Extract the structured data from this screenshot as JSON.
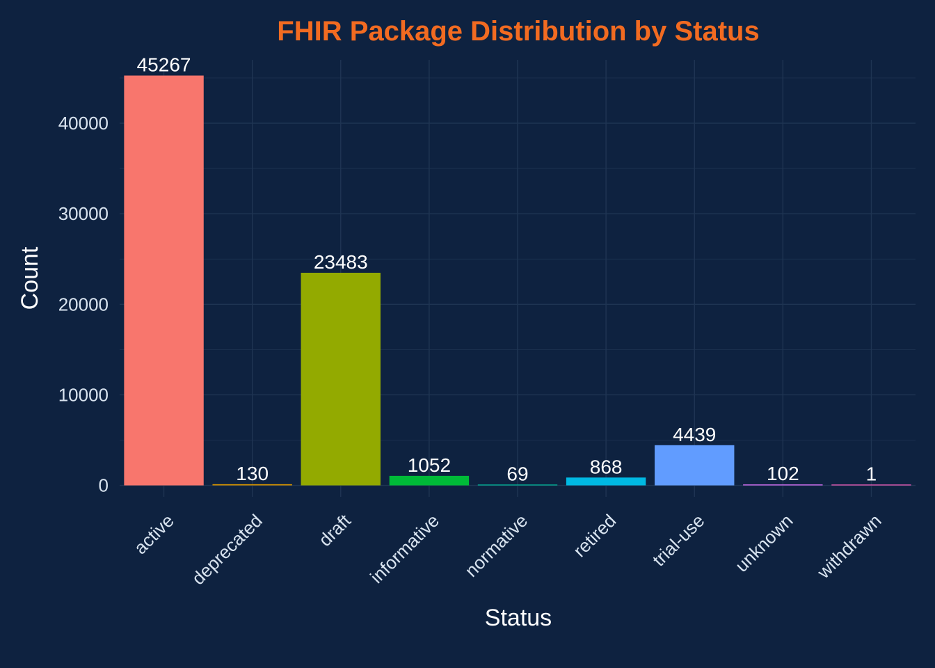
{
  "chart_data": {
    "type": "bar",
    "title": "FHIR Package Distribution by Status",
    "xlabel": "Status",
    "ylabel": "Count",
    "categories": [
      "active",
      "deprecated",
      "draft",
      "informative",
      "normative",
      "retired",
      "trial-use",
      "unknown",
      "withdrawn"
    ],
    "values": [
      45267,
      130,
      23483,
      1052,
      69,
      868,
      4439,
      102,
      1
    ],
    "data_labels": [
      "45267",
      "130",
      "23483",
      "1052",
      "69",
      "868",
      "4439",
      "102",
      "1"
    ],
    "bar_colors": [
      "#f8766d",
      "#d39200",
      "#93aa00",
      "#00ba38",
      "#00c19f",
      "#00b9e3",
      "#619cff",
      "#db72fb",
      "#ff61c3"
    ],
    "ylim": [
      -1263,
      47000
    ],
    "yticks": [
      0,
      10000,
      20000,
      30000,
      40000
    ],
    "ytick_labels": [
      "0",
      "10000",
      "20000",
      "30000",
      "40000"
    ],
    "grid": true,
    "legend": "none"
  },
  "colors": {
    "background": "#0e2240",
    "grid": "#1f3553",
    "title": "#f26b21",
    "text": "#ffffff",
    "tick_text": "#d8e3ef"
  }
}
